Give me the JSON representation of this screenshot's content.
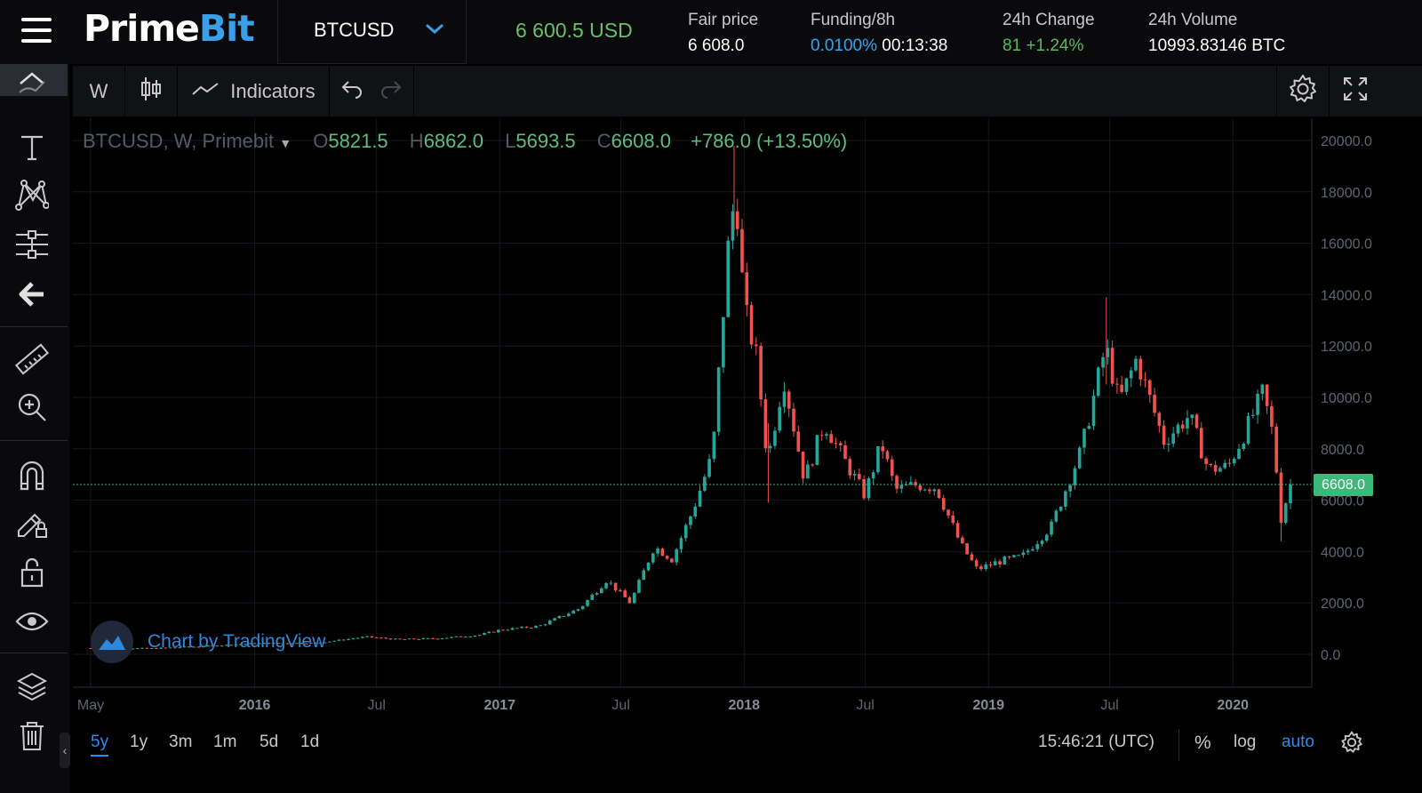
{
  "header": {
    "brand_part1": "Prime",
    "brand_part2": "Bit",
    "symbol": "BTCUSD",
    "last_price": "6 600.5 USD",
    "fair_price_label": "Fair price",
    "fair_price_value": "6 608.0",
    "funding_label": "Funding/8h",
    "funding_rate": "0.0100%",
    "funding_timer": "00:13:38",
    "change_label": "24h Change",
    "change_value": "81 +1.24%",
    "volume_label": "24h Volume",
    "volume_value": "10993.83146 BTC"
  },
  "toolbar": {
    "interval": "W",
    "indicators_label": "Indicators"
  },
  "legend": {
    "series_name": "BTCUSD, W, Primebit",
    "o_label": "O",
    "o_value": "5821.5",
    "h_label": "H",
    "h_value": "6862.0",
    "l_label": "L",
    "l_value": "5693.5",
    "c_label": "C",
    "c_value": "6608.0",
    "change": "+786.0 (+13.50%)"
  },
  "watermark": "Chart by TradingView",
  "bottom": {
    "ranges": [
      "5y",
      "1y",
      "3m",
      "1m",
      "5d",
      "1d"
    ],
    "active_range": "5y",
    "time": "15:46:21 (UTC)",
    "percent_label": "%",
    "log_label": "log",
    "auto_label": "auto"
  },
  "colors": {
    "up": "#26a69a",
    "down": "#ef5350",
    "accent": "#2f8ae8",
    "price_line": "#3cb878"
  },
  "chart_data": {
    "type": "candlestick",
    "interval": "weekly",
    "current_price": 6608.0,
    "current_price_label": "6608.0",
    "y_ticks": [
      "20000.0",
      "18000.0",
      "16000.0",
      "14000.0",
      "12000.0",
      "10000.0",
      "8000.0",
      "6000.0",
      "4000.0",
      "2000.0",
      "0.0"
    ],
    "ylim": [
      0,
      20000
    ],
    "x_ticks": [
      {
        "label": "May",
        "date": "2015-05-01"
      },
      {
        "label": "2016",
        "date": "2016-01-01"
      },
      {
        "label": "Jul",
        "date": "2016-07-01"
      },
      {
        "label": "2017",
        "date": "2017-01-01"
      },
      {
        "label": "Jul",
        "date": "2017-07-01"
      },
      {
        "label": "2018",
        "date": "2018-01-01"
      },
      {
        "label": "Jul",
        "date": "2018-07-01"
      },
      {
        "label": "2019",
        "date": "2019-01-01"
      },
      {
        "label": "Jul",
        "date": "2019-07-01"
      },
      {
        "label": "2020",
        "date": "2020-01-01"
      }
    ],
    "close_path": [
      [
        "2015-05-01",
        240
      ],
      [
        "2015-08-01",
        230
      ],
      [
        "2015-11-01",
        330
      ],
      [
        "2016-01-01",
        430
      ],
      [
        "2016-04-01",
        440
      ],
      [
        "2016-06-15",
        680
      ],
      [
        "2016-08-01",
        580
      ],
      [
        "2016-10-01",
        620
      ],
      [
        "2016-12-01",
        750
      ],
      [
        "2017-01-01",
        950
      ],
      [
        "2017-03-01",
        1100
      ],
      [
        "2017-05-01",
        1800
      ],
      [
        "2017-06-10",
        2900
      ],
      [
        "2017-07-15",
        2000
      ],
      [
        "2017-08-20",
        4200
      ],
      [
        "2017-09-15",
        3700
      ],
      [
        "2017-10-15",
        5500
      ],
      [
        "2017-11-15",
        7800
      ],
      [
        "2017-12-10",
        16500
      ],
      [
        "2017-12-20",
        18000
      ],
      [
        "2018-01-01",
        13500
      ],
      [
        "2018-01-20",
        11500
      ],
      [
        "2018-02-05",
        7500
      ],
      [
        "2018-03-01",
        10800
      ],
      [
        "2018-04-01",
        6800
      ],
      [
        "2018-05-01",
        9000
      ],
      [
        "2018-06-01",
        7500
      ],
      [
        "2018-06-30",
        6200
      ],
      [
        "2018-07-25",
        8200
      ],
      [
        "2018-08-15",
        6400
      ],
      [
        "2018-09-15",
        6600
      ],
      [
        "2018-10-15",
        6500
      ],
      [
        "2018-11-20",
        4300
      ],
      [
        "2018-12-15",
        3300
      ],
      [
        "2019-01-15",
        3600
      ],
      [
        "2019-02-20",
        3800
      ],
      [
        "2019-04-05",
        5000
      ],
      [
        "2019-05-20",
        8000
      ],
      [
        "2019-06-25",
        12000
      ],
      [
        "2019-07-15",
        9800
      ],
      [
        "2019-08-10",
        11500
      ],
      [
        "2019-09-20",
        8300
      ],
      [
        "2019-10-28",
        9300
      ],
      [
        "2019-11-25",
        7200
      ],
      [
        "2019-12-25",
        7300
      ],
      [
        "2020-01-20",
        8700
      ],
      [
        "2020-02-15",
        10200
      ],
      [
        "2020-03-01",
        8500
      ],
      [
        "2020-03-13",
        5300
      ],
      [
        "2020-03-27",
        6608
      ]
    ],
    "spikes": [
      {
        "date": "2017-12-17",
        "high": 19800,
        "low": 16500
      },
      {
        "date": "2018-02-06",
        "high": 9000,
        "low": 5900
      },
      {
        "date": "2019-06-26",
        "high": 13900,
        "low": 10500
      },
      {
        "date": "2020-03-13",
        "high": 6000,
        "low": 4400
      }
    ]
  }
}
